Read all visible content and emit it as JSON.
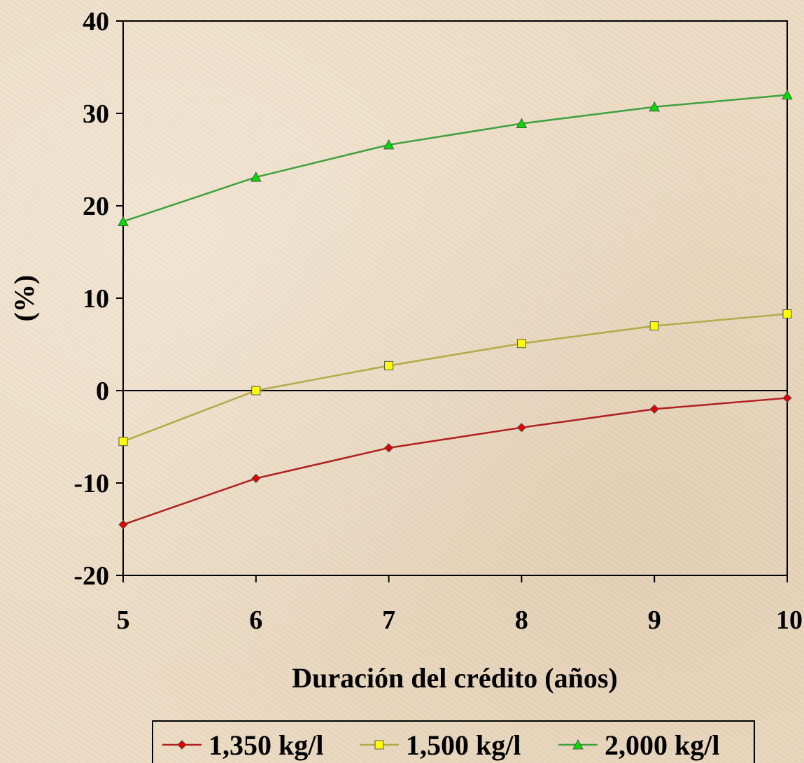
{
  "chart_data": {
    "type": "line",
    "title": "",
    "xlabel": "Duración del crédito (años)",
    "ylabel": "(%)",
    "x": [
      5,
      6,
      7,
      8,
      9,
      10
    ],
    "xlim": [
      5,
      10
    ],
    "ylim": [
      -20,
      40
    ],
    "yticks": [
      40,
      30,
      20,
      10,
      0,
      -10,
      -20
    ],
    "xticks": [
      5,
      6,
      7,
      8,
      9,
      10
    ],
    "legend_position": "bottom",
    "series": [
      {
        "name": "1,350 kg/l",
        "color": "#e00000",
        "line_color": "#b02020",
        "marker": "diamond",
        "values": [
          -14.5,
          -9.5,
          -6.2,
          -4.0,
          -2.0,
          -0.8
        ]
      },
      {
        "name": "1,500 kg/l",
        "color": "#ffff00",
        "line_color": "#b4aa48",
        "marker": "square",
        "values": [
          -5.5,
          0.0,
          2.7,
          5.1,
          7.0,
          8.3
        ]
      },
      {
        "name": "2,000 kg/l",
        "color": "#00dd00",
        "line_color": "#40a040",
        "marker": "triangle",
        "values": [
          18.3,
          23.1,
          26.6,
          28.9,
          30.7,
          32.0
        ]
      }
    ]
  }
}
